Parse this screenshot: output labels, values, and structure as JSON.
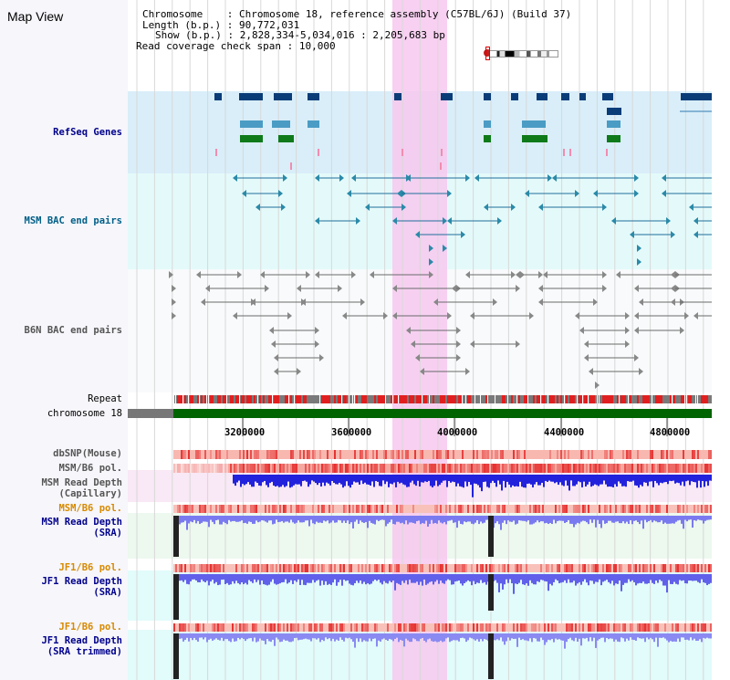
{
  "app": {
    "title": "Map View"
  },
  "info": {
    "chromosome_label": "Chromosome",
    "chromosome_value": "Chromosome 18, reference assembly (C57BL/6J) (Build 37)",
    "length_label": "Length (b.p.)",
    "length_value": "90,772,031",
    "show_label": "Show (b.p.)",
    "show_value": "2,828,334-5,034,016 : 2,205,683 bp",
    "span_label": "Read coverage check span",
    "span_value": "10,000"
  },
  "tracks": {
    "refseq": "RefSeq Genes",
    "msm_bac": "MSM BAC end pairs",
    "b6n_bac": "B6N BAC end pairs",
    "repeat": "Repeat",
    "chromosome": "chromosome 18",
    "dbsnp": "dbSNP(Mouse)",
    "msm_b6_pol_1": "MSM/B6 pol.",
    "msm_read_depth_cap_1": "MSM Read Depth",
    "msm_read_depth_cap_2": "(Capillary)",
    "msm_b6_pol_2": "MSM/B6 pol.",
    "msm_read_depth_sra_1": "MSM Read Depth",
    "msm_read_depth_sra_2": "(SRA)",
    "jf1_b6_pol_1": "JF1/B6 pol.",
    "jf1_read_depth_sra_1": "JF1 Read Depth",
    "jf1_read_depth_sra_2": "(SRA)",
    "jf1_b6_pol_2": "JF1/B6 pol.",
    "jf1_read_depth_trim_1": "JF1 Read Depth",
    "jf1_read_depth_trim_2": "(SRA trimmed)"
  },
  "axis": {
    "ticks": [
      "3200000",
      "3600000",
      "4000000",
      "4400000",
      "4800000"
    ]
  },
  "colors": {
    "highlight": "#f7c8ef",
    "refseq_bg": "#d9eef9",
    "bac_bg": "#e4fafa",
    "depth_bar": "#3f3fe0",
    "depth_bar_light": "#8c8cf3",
    "chromosome_bar": "#006400",
    "pol_red": "#e53030",
    "orange_label": "#d88a00",
    "navy_label": "#00008b",
    "teal_label": "#005f87"
  }
}
